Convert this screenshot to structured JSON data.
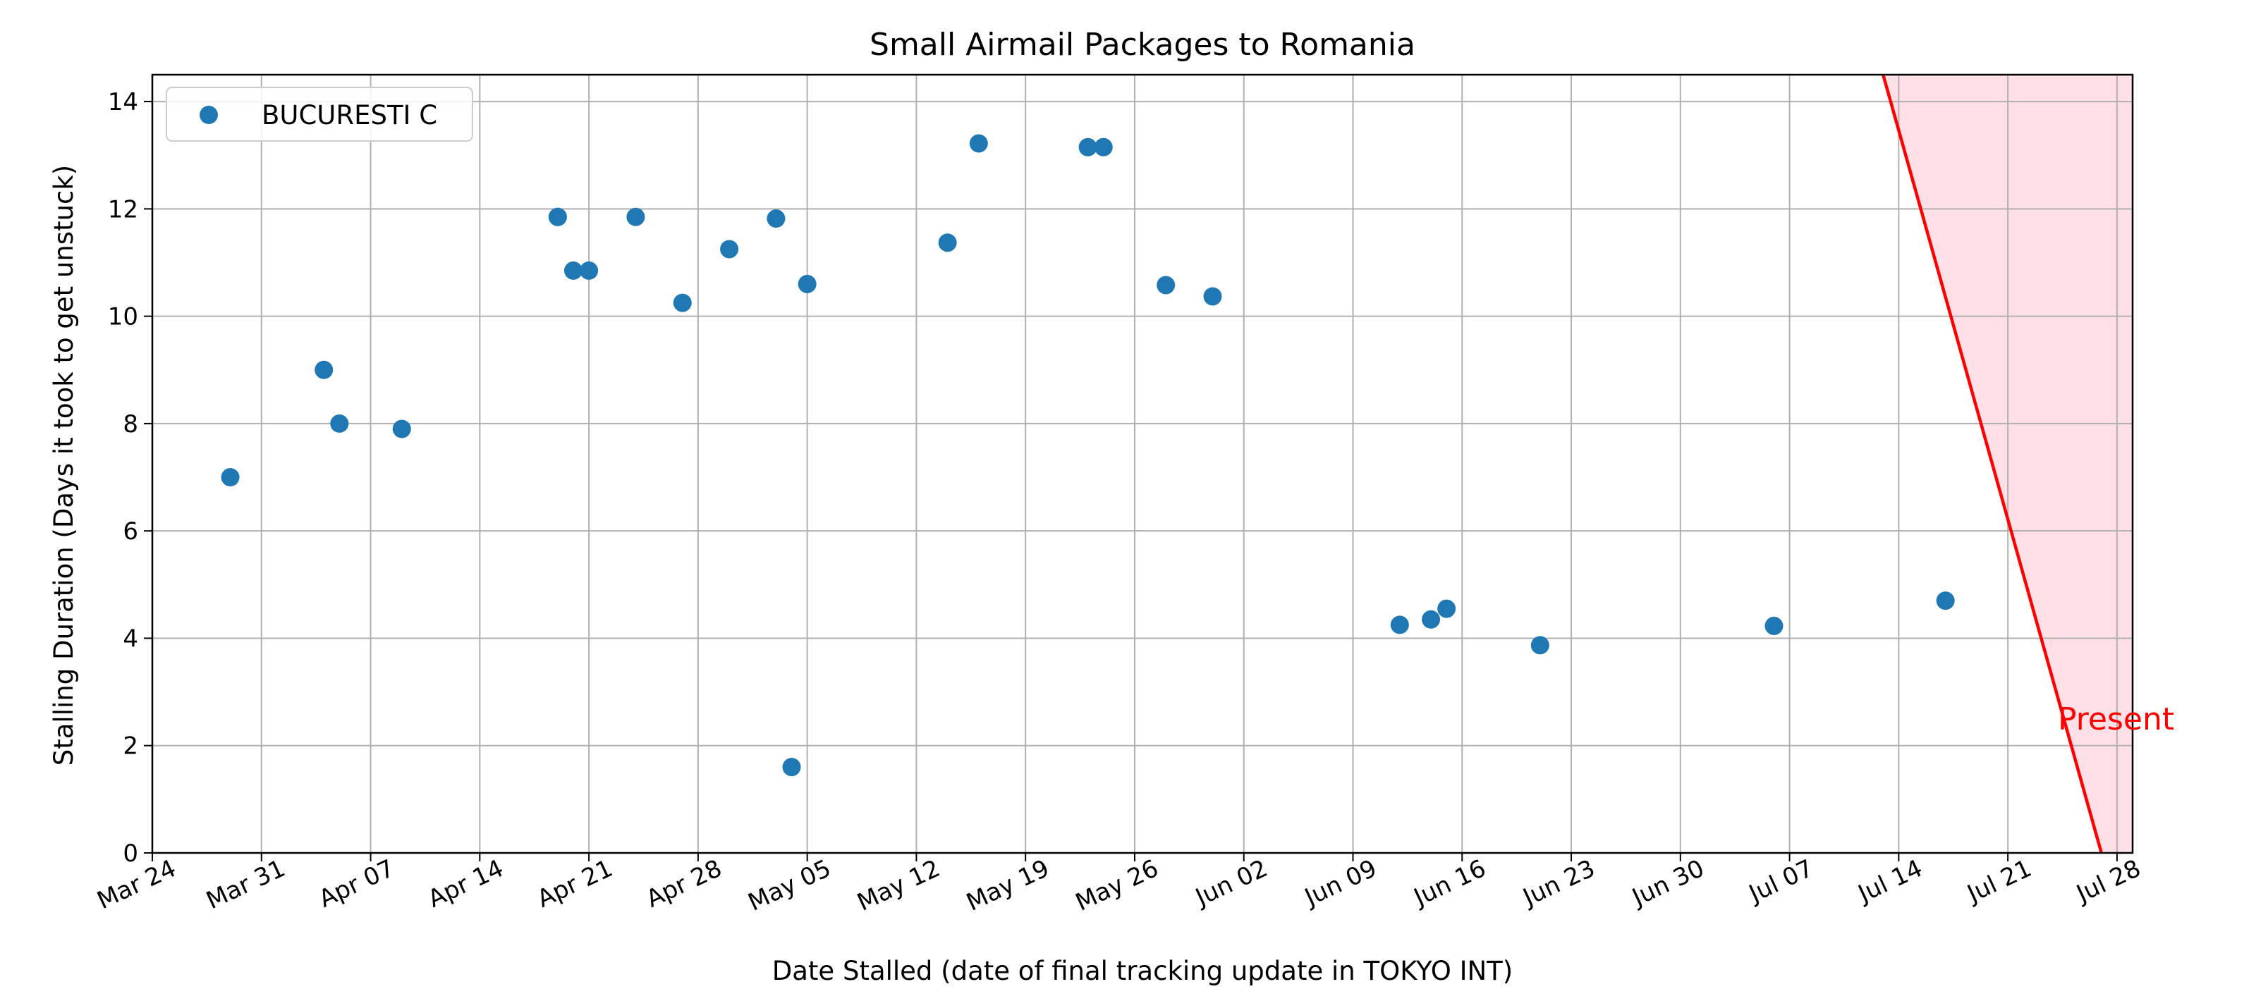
{
  "chart_data": {
    "type": "scatter",
    "title": "Small Airmail Packages to Romania",
    "xlabel": "Date Stalled (date of final tracking update in TOKYO INT)",
    "ylabel": "Stalling Duration (Days it took to get unstuck)",
    "xlim": [
      "2025-03-24",
      "2025-07-29"
    ],
    "ylim": [
      0,
      14.5
    ],
    "x_ticks": [
      {
        "date": "2025-03-24",
        "label": "Mar 24"
      },
      {
        "date": "2025-03-31",
        "label": "Mar 31"
      },
      {
        "date": "2025-04-07",
        "label": "Apr 07"
      },
      {
        "date": "2025-04-14",
        "label": "Apr 14"
      },
      {
        "date": "2025-04-21",
        "label": "Apr 21"
      },
      {
        "date": "2025-04-28",
        "label": "Apr 28"
      },
      {
        "date": "2025-05-05",
        "label": "May 05"
      },
      {
        "date": "2025-05-12",
        "label": "May 12"
      },
      {
        "date": "2025-05-19",
        "label": "May 19"
      },
      {
        "date": "2025-05-26",
        "label": "May 26"
      },
      {
        "date": "2025-06-02",
        "label": "Jun 02"
      },
      {
        "date": "2025-06-09",
        "label": "Jun 09"
      },
      {
        "date": "2025-06-16",
        "label": "Jun 16"
      },
      {
        "date": "2025-06-23",
        "label": "Jun 23"
      },
      {
        "date": "2025-06-30",
        "label": "Jun 30"
      },
      {
        "date": "2025-07-07",
        "label": "Jul 07"
      },
      {
        "date": "2025-07-14",
        "label": "Jul 14"
      },
      {
        "date": "2025-07-21",
        "label": "Jul 21"
      },
      {
        "date": "2025-07-28",
        "label": "Jul 28"
      }
    ],
    "y_ticks": [
      0,
      2,
      4,
      6,
      8,
      10,
      12,
      14
    ],
    "grid": true,
    "legend_position": "top-left",
    "series": [
      {
        "name": "BUCURESTI C",
        "color": "#1f77b4",
        "points": [
          {
            "x": "2025-03-29",
            "y": 7.0
          },
          {
            "x": "2025-04-04",
            "y": 9.0
          },
          {
            "x": "2025-04-05",
            "y": 8.0
          },
          {
            "x": "2025-04-09",
            "y": 7.9
          },
          {
            "x": "2025-04-19",
            "y": 11.85
          },
          {
            "x": "2025-04-19",
            "y": 11.85
          },
          {
            "x": "2025-04-20",
            "y": 10.85
          },
          {
            "x": "2025-04-21",
            "y": 10.85
          },
          {
            "x": "2025-04-24",
            "y": 11.85
          },
          {
            "x": "2025-04-27",
            "y": 10.25
          },
          {
            "x": "2025-04-30",
            "y": 11.25
          },
          {
            "x": "2025-05-03",
            "y": 11.82
          },
          {
            "x": "2025-05-04",
            "y": 1.6
          },
          {
            "x": "2025-05-05",
            "y": 10.6
          },
          {
            "x": "2025-05-14",
            "y": 11.37
          },
          {
            "x": "2025-05-16",
            "y": 13.22
          },
          {
            "x": "2025-05-23",
            "y": 13.15
          },
          {
            "x": "2025-05-24",
            "y": 13.15
          },
          {
            "x": "2025-05-28",
            "y": 10.58
          },
          {
            "x": "2025-05-31",
            "y": 10.37
          },
          {
            "x": "2025-06-12",
            "y": 4.25
          },
          {
            "x": "2025-06-14",
            "y": 4.35
          },
          {
            "x": "2025-06-15",
            "y": 4.55
          },
          {
            "x": "2025-06-21",
            "y": 3.87
          },
          {
            "x": "2025-07-06",
            "y": 4.23
          },
          {
            "x": "2025-07-17",
            "y": 4.7
          }
        ]
      }
    ],
    "present_line": {
      "label": "Present",
      "color": "#ff0000",
      "fill_color": "#ffe0e6",
      "points": [
        {
          "x": "2025-07-13",
          "y": 14.5
        },
        {
          "x": "2025-07-27",
          "y": 0
        }
      ]
    }
  }
}
